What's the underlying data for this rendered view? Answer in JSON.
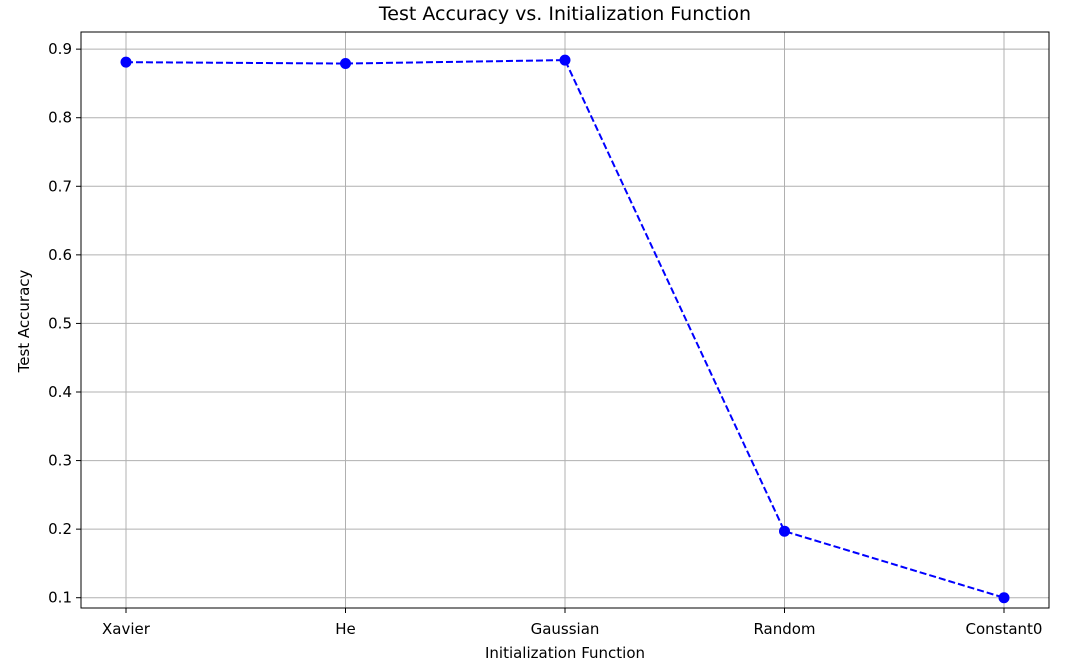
{
  "chart_data": {
    "type": "line",
    "title": "Test Accuracy vs. Initialization Function",
    "xlabel": "Initialization Function",
    "ylabel": "Test Accuracy",
    "categories": [
      "Xavier",
      "He",
      "Gaussian",
      "Random",
      "Constant0"
    ],
    "series": [
      {
        "values": [
          0.881,
          0.879,
          0.884,
          0.197,
          0.1
        ],
        "color": "#0000ff",
        "line_style": "dashed",
        "marker": "circle"
      }
    ],
    "ylim": [
      0.085,
      0.925
    ],
    "yticks": [
      0.1,
      0.2,
      0.3,
      0.4,
      0.5,
      0.6,
      0.7,
      0.8,
      0.9
    ],
    "ytick_labels": [
      "0.1",
      "0.2",
      "0.3",
      "0.4",
      "0.5",
      "0.6",
      "0.7",
      "0.8",
      "0.9"
    ],
    "grid": true,
    "grid_color": "#b0b0b0",
    "axis_color": "#000000"
  }
}
